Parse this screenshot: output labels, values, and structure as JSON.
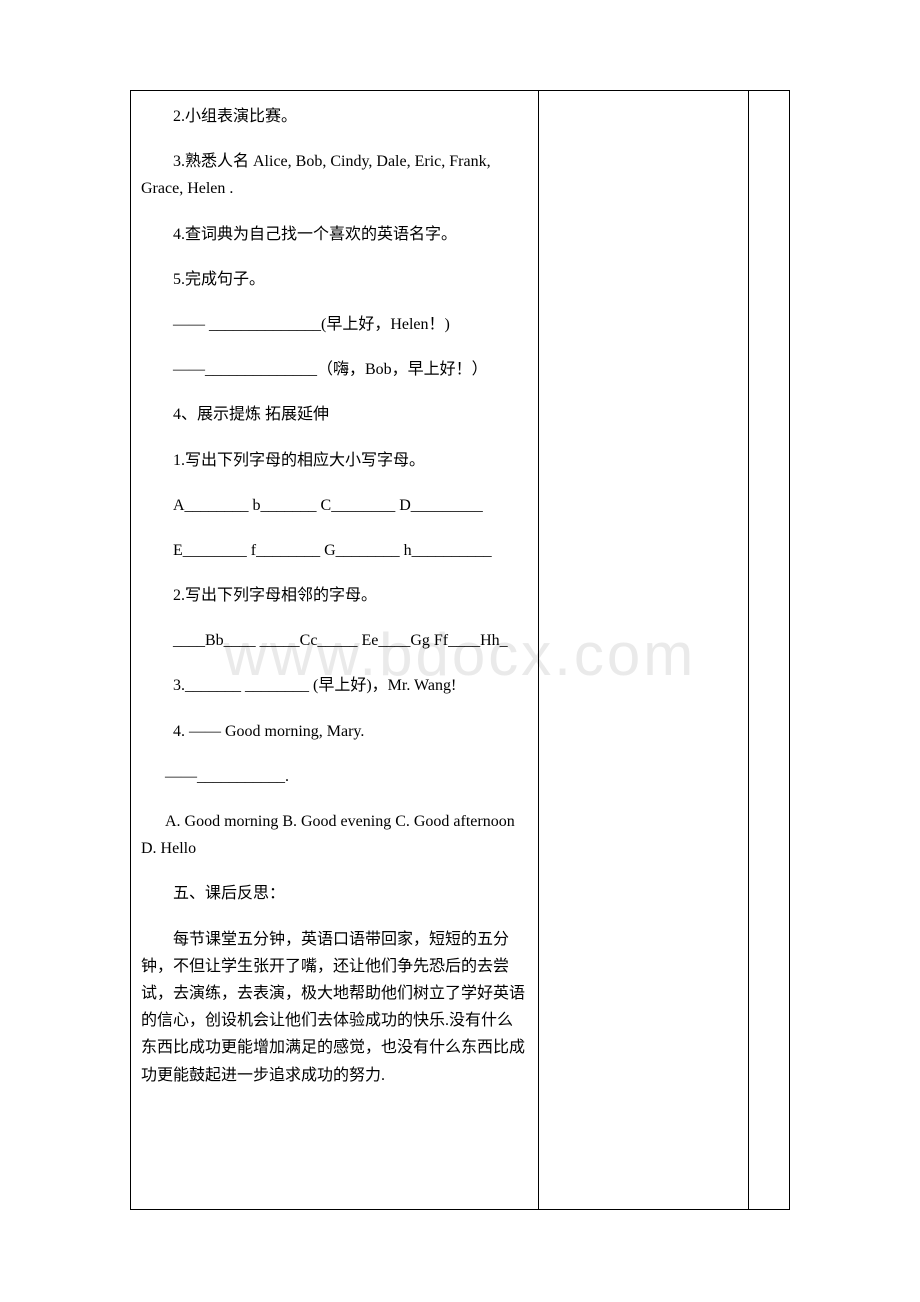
{
  "watermark": "www.bdocx.com",
  "content": {
    "item2": "2.小组表演比赛。",
    "item3": "3.熟悉人名 Alice, Bob, Cindy, Dale, Eric, Frank, Grace, Helen .",
    "item4": "4.查词典为自己找一个喜欢的英语名字。",
    "item5": "5.完成句子。",
    "blank1": "—— ______________(早上好，Helen！)",
    "blank2": "——______________（嗨，Bob，早上好！）",
    "section4": "4、展示提炼 拓展延伸",
    "ex1": "1.写出下列字母的相应大小写字母。",
    "ex1_line1": "A________ b_______ C________ D_________",
    "ex1_line2": "E________ f________ G________ h__________",
    "ex2": "2.写出下列字母相邻的字母。",
    "ex2_line": "____Bb____ _____Cc_____ Ee____Gg Ff____Hh_",
    "ex3": "3._______ ________ (早上好)，Mr. Wang!",
    "ex4": "4. —— Good morning, Mary.",
    "ex4_response": "——___________.",
    "ex4_options": " A. Good morning B. Good evening C. Good afternoon D. Hello",
    "section5": "五、课后反思：",
    "reflection": "每节课堂五分钟，英语口语带回家，短短的五分钟，不但让学生张开了嘴，还让他们争先恐后的去尝试，去演练，去表演，极大地帮助他们树立了学好英语的信心，创设机会让他们去体验成功的快乐.没有什么东西比成功更能增加满足的感觉，也没有什么东西比成功更能鼓起进一步追求成功的努力."
  }
}
